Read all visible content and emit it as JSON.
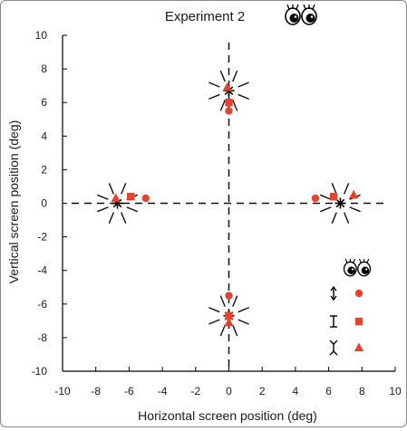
{
  "chart_data": {
    "type": "scatter",
    "title": "Experiment 2",
    "xlabel": "Horizontal screen position (deg)",
    "ylabel": "Vertical screen position (deg)",
    "xlim": [
      -10,
      10
    ],
    "ylim": [
      -10,
      10
    ],
    "x_ticks": [
      -10,
      -8,
      -6,
      -4,
      -2,
      0,
      2,
      4,
      6,
      8,
      10
    ],
    "y_ticks": [
      -10,
      -8,
      -6,
      -4,
      -2,
      0,
      2,
      4,
      6,
      8,
      10
    ],
    "grid": false,
    "reference_axes": "dashed lines at x=0 and y=0",
    "marker_color": "#e8412c",
    "targets": [
      {
        "x": 0,
        "y": 6.7
      },
      {
        "x": 0,
        "y": -6.7
      },
      {
        "x": -6.7,
        "y": 0
      },
      {
        "x": 6.7,
        "y": 0
      }
    ],
    "series": [
      {
        "marker": "circle",
        "points": [
          [
            0,
            5.5
          ],
          [
            0,
            -5.5
          ],
          [
            -5.0,
            0.3
          ],
          [
            5.2,
            0.3
          ]
        ]
      },
      {
        "marker": "square",
        "points": [
          [
            0,
            6.0
          ],
          [
            0,
            -6.7
          ],
          [
            -5.9,
            0.4
          ],
          [
            6.3,
            0.4
          ]
        ]
      },
      {
        "marker": "triangle",
        "points": [
          [
            -0.1,
            6.9
          ],
          [
            0,
            -7.1
          ],
          [
            -6.8,
            0.3
          ],
          [
            7.5,
            0.5
          ]
        ]
      }
    ],
    "legend": {
      "placement": "bottom-right",
      "entries": [
        {
          "symbol": "double-arrow",
          "marker": "circle"
        },
        {
          "symbol": "i-beam",
          "marker": "square"
        },
        {
          "symbol": "concave-bracket",
          "marker": "triangle"
        }
      ]
    }
  }
}
